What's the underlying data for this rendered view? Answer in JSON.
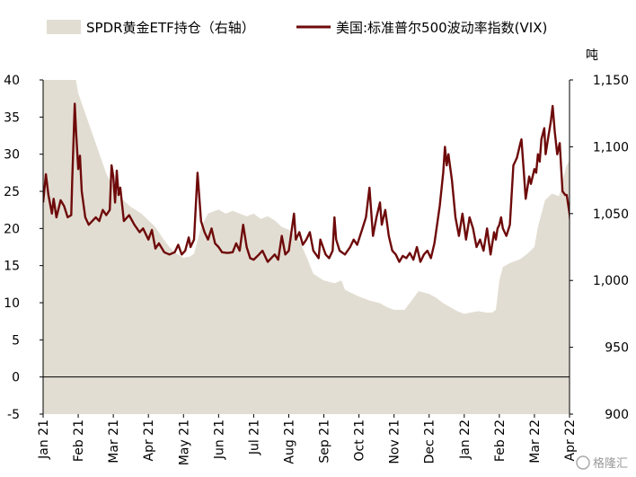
{
  "chart_data": {
    "type": "line",
    "legend": [
      {
        "name": "SPDR黄金ETF持仓（右轴）",
        "kind": "area",
        "color": "#e2ddd2"
      },
      {
        "name": "美国:标准普尔500波动率指数(VIX)",
        "kind": "line",
        "color": "#6e0a0a"
      }
    ],
    "left_axis": {
      "ylim": [
        -5,
        40
      ],
      "ticks": [
        -5,
        0,
        5,
        10,
        15,
        20,
        25,
        30,
        35,
        40
      ]
    },
    "right_axis": {
      "unit": "吨",
      "ylim": [
        900,
        1150
      ],
      "ticks": [
        900,
        950,
        1000,
        1050,
        1100,
        1150
      ],
      "tick_labels": [
        "900",
        "950",
        "1,000",
        "1,050",
        "1,100",
        "1,150"
      ]
    },
    "x_axis": {
      "labels": [
        "Jan 21",
        "Feb 21",
        "Mar 21",
        "Apr 21",
        "May 21",
        "Jun 21",
        "Jul 21",
        "Aug 21",
        "Sep 21",
        "Oct 21",
        "Nov 21",
        "Dec 21",
        "Jan 22",
        "Feb 22",
        "Mar 22",
        "Apr 22"
      ],
      "range": [
        0,
        15
      ]
    },
    "series": [
      {
        "name": "SPDR黄金ETF持仓（右轴）",
        "axis": "right",
        "points": [
          [
            0,
            1155
          ],
          [
            0.9,
            1155
          ],
          [
            1.0,
            1140
          ],
          [
            1.2,
            1125
          ],
          [
            1.4,
            1110
          ],
          [
            1.6,
            1095
          ],
          [
            1.8,
            1080
          ],
          [
            2.0,
            1070
          ],
          [
            2.2,
            1062
          ],
          [
            2.5,
            1055
          ],
          [
            2.8,
            1050
          ],
          [
            3.0,
            1045
          ],
          [
            3.2,
            1040
          ],
          [
            3.4,
            1032
          ],
          [
            3.6,
            1025
          ],
          [
            3.8,
            1020
          ],
          [
            4.0,
            1017
          ],
          [
            4.2,
            1018
          ],
          [
            4.3,
            1020
          ],
          [
            4.5,
            1040
          ],
          [
            4.7,
            1050
          ],
          [
            5.0,
            1053
          ],
          [
            5.2,
            1050
          ],
          [
            5.4,
            1052
          ],
          [
            5.6,
            1050
          ],
          [
            5.8,
            1048
          ],
          [
            6.0,
            1050
          ],
          [
            6.2,
            1046
          ],
          [
            6.4,
            1048
          ],
          [
            6.6,
            1045
          ],
          [
            6.8,
            1040
          ],
          [
            7.0,
            1038
          ],
          [
            7.3,
            1030
          ],
          [
            7.5,
            1018
          ],
          [
            7.7,
            1005
          ],
          [
            8.0,
            1000
          ],
          [
            8.3,
            998
          ],
          [
            8.5,
            1000
          ],
          [
            8.6,
            993
          ],
          [
            9.0,
            988
          ],
          [
            9.3,
            985
          ],
          [
            9.6,
            983
          ],
          [
            9.8,
            980
          ],
          [
            10.0,
            978
          ],
          [
            10.3,
            978
          ],
          [
            10.5,
            985
          ],
          [
            10.7,
            992
          ],
          [
            11.0,
            990
          ],
          [
            11.2,
            987
          ],
          [
            11.4,
            983
          ],
          [
            11.6,
            980
          ],
          [
            11.8,
            977
          ],
          [
            12.0,
            975
          ],
          [
            12.2,
            976
          ],
          [
            12.4,
            977
          ],
          [
            12.6,
            976
          ],
          [
            12.8,
            976
          ],
          [
            12.9,
            978
          ],
          [
            13.0,
            1000
          ],
          [
            13.1,
            1010
          ],
          [
            13.3,
            1013
          ],
          [
            13.6,
            1016
          ],
          [
            13.8,
            1020
          ],
          [
            14.0,
            1025
          ],
          [
            14.1,
            1040
          ],
          [
            14.3,
            1060
          ],
          [
            14.5,
            1065
          ],
          [
            14.7,
            1063
          ],
          [
            14.9,
            1085
          ],
          [
            15.0,
            1090
          ]
        ]
      },
      {
        "name": "美国:标准普尔500波动率指数(VIX)",
        "axis": "left",
        "points": [
          [
            0,
            23.5
          ],
          [
            0.08,
            27.3
          ],
          [
            0.15,
            24.5
          ],
          [
            0.25,
            22.0
          ],
          [
            0.3,
            24.0
          ],
          [
            0.38,
            21.5
          ],
          [
            0.5,
            23.8
          ],
          [
            0.6,
            23.0
          ],
          [
            0.7,
            21.5
          ],
          [
            0.8,
            21.8
          ],
          [
            0.83,
            26.5
          ],
          [
            0.9,
            36.8
          ],
          [
            0.94,
            33.0
          ],
          [
            1.0,
            28.0
          ],
          [
            1.05,
            29.8
          ],
          [
            1.1,
            25.0
          ],
          [
            1.2,
            21.5
          ],
          [
            1.3,
            20.5
          ],
          [
            1.4,
            21.0
          ],
          [
            1.5,
            21.5
          ],
          [
            1.6,
            21.0
          ],
          [
            1.7,
            22.5
          ],
          [
            1.8,
            21.8
          ],
          [
            1.9,
            22.5
          ],
          [
            1.95,
            28.5
          ],
          [
            2.0,
            27.0
          ],
          [
            2.05,
            23.5
          ],
          [
            2.1,
            27.8
          ],
          [
            2.15,
            24.5
          ],
          [
            2.2,
            25.5
          ],
          [
            2.3,
            21.0
          ],
          [
            2.45,
            21.8
          ],
          [
            2.6,
            20.5
          ],
          [
            2.75,
            19.5
          ],
          [
            2.85,
            20.0
          ],
          [
            3.0,
            18.5
          ],
          [
            3.1,
            19.8
          ],
          [
            3.2,
            17.3
          ],
          [
            3.3,
            18.0
          ],
          [
            3.45,
            16.8
          ],
          [
            3.6,
            16.5
          ],
          [
            3.75,
            16.8
          ],
          [
            3.85,
            17.8
          ],
          [
            3.95,
            16.5
          ],
          [
            4.05,
            17.0
          ],
          [
            4.15,
            18.8
          ],
          [
            4.2,
            17.5
          ],
          [
            4.3,
            18.5
          ],
          [
            4.4,
            27.5
          ],
          [
            4.5,
            21.0
          ],
          [
            4.6,
            19.5
          ],
          [
            4.7,
            18.5
          ],
          [
            4.8,
            20.0
          ],
          [
            4.9,
            18.0
          ],
          [
            5.0,
            17.5
          ],
          [
            5.1,
            16.8
          ],
          [
            5.25,
            16.7
          ],
          [
            5.4,
            16.8
          ],
          [
            5.5,
            18.0
          ],
          [
            5.6,
            17.0
          ],
          [
            5.7,
            20.5
          ],
          [
            5.8,
            17.5
          ],
          [
            5.9,
            16.0
          ],
          [
            6.0,
            15.8
          ],
          [
            6.15,
            16.5
          ],
          [
            6.25,
            17.0
          ],
          [
            6.4,
            15.5
          ],
          [
            6.5,
            16.0
          ],
          [
            6.6,
            16.5
          ],
          [
            6.7,
            15.8
          ],
          [
            6.8,
            19.0
          ],
          [
            6.9,
            16.5
          ],
          [
            7.0,
            17.0
          ],
          [
            7.15,
            22.0
          ],
          [
            7.2,
            18.5
          ],
          [
            7.3,
            19.5
          ],
          [
            7.4,
            17.8
          ],
          [
            7.5,
            18.5
          ],
          [
            7.6,
            19.5
          ],
          [
            7.7,
            17.0
          ],
          [
            7.85,
            16.0
          ],
          [
            7.9,
            18.5
          ],
          [
            8.05,
            16.5
          ],
          [
            8.15,
            16.0
          ],
          [
            8.25,
            17.0
          ],
          [
            8.3,
            21.5
          ],
          [
            8.35,
            18.5
          ],
          [
            8.45,
            17.0
          ],
          [
            8.6,
            16.5
          ],
          [
            8.75,
            17.5
          ],
          [
            8.85,
            18.5
          ],
          [
            8.95,
            17.8
          ],
          [
            9.1,
            20.0
          ],
          [
            9.2,
            21.5
          ],
          [
            9.3,
            25.5
          ],
          [
            9.4,
            19.0
          ],
          [
            9.5,
            21.5
          ],
          [
            9.6,
            23.5
          ],
          [
            9.65,
            20.5
          ],
          [
            9.75,
            22.5
          ],
          [
            9.85,
            19.0
          ],
          [
            9.95,
            17.0
          ],
          [
            10.05,
            16.5
          ],
          [
            10.15,
            15.5
          ],
          [
            10.25,
            16.3
          ],
          [
            10.35,
            16.0
          ],
          [
            10.45,
            16.7
          ],
          [
            10.55,
            15.8
          ],
          [
            10.65,
            17.5
          ],
          [
            10.75,
            15.5
          ],
          [
            10.85,
            16.5
          ],
          [
            10.95,
            17.0
          ],
          [
            11.05,
            16.0
          ],
          [
            11.15,
            18.0
          ],
          [
            11.3,
            23.0
          ],
          [
            11.4,
            27.5
          ],
          [
            11.45,
            31.0
          ],
          [
            11.5,
            28.5
          ],
          [
            11.55,
            30.0
          ],
          [
            11.65,
            26.5
          ],
          [
            11.75,
            21.5
          ],
          [
            11.85,
            19.0
          ],
          [
            11.95,
            22.0
          ],
          [
            12.05,
            18.5
          ],
          [
            12.15,
            21.5
          ],
          [
            12.25,
            20.0
          ],
          [
            12.35,
            17.5
          ],
          [
            12.45,
            18.5
          ],
          [
            12.55,
            17.0
          ],
          [
            12.65,
            20.0
          ],
          [
            12.75,
            16.5
          ],
          [
            12.85,
            19.5
          ],
          [
            12.9,
            18.5
          ],
          [
            12.95,
            20.0
          ],
          [
            13.0,
            20.5
          ],
          [
            13.05,
            21.5
          ],
          [
            13.1,
            20.0
          ],
          [
            13.2,
            19.0
          ],
          [
            13.3,
            20.5
          ],
          [
            13.4,
            28.5
          ],
          [
            13.5,
            29.5
          ],
          [
            13.6,
            31.5
          ],
          [
            13.63,
            32.0
          ],
          [
            13.7,
            27.5
          ],
          [
            13.75,
            24.0
          ],
          [
            13.85,
            27.0
          ],
          [
            13.9,
            26.0
          ],
          [
            14.0,
            28.0
          ],
          [
            14.05,
            27.5
          ],
          [
            14.1,
            30.0
          ],
          [
            14.15,
            29.0
          ],
          [
            14.2,
            32.0
          ],
          [
            14.28,
            33.5
          ],
          [
            14.32,
            30.0
          ],
          [
            14.4,
            32.5
          ],
          [
            14.47,
            34.5
          ],
          [
            14.52,
            36.5
          ],
          [
            14.58,
            33.0
          ],
          [
            14.65,
            30.0
          ],
          [
            14.72,
            31.5
          ],
          [
            14.8,
            25.0
          ],
          [
            14.88,
            24.5
          ],
          [
            14.92,
            24.5
          ],
          [
            15.0,
            22.0
          ],
          [
            15.02,
            21.0
          ],
          [
            15.1,
            20.0
          ],
          [
            15.18,
            21.0
          ],
          [
            15.25,
            19.5
          ],
          [
            15.32,
            20.0
          ],
          [
            15.4,
            19.5
          ],
          [
            15.48,
            21.0
          ]
        ]
      }
    ]
  },
  "watermark": {
    "text": "格隆汇"
  }
}
